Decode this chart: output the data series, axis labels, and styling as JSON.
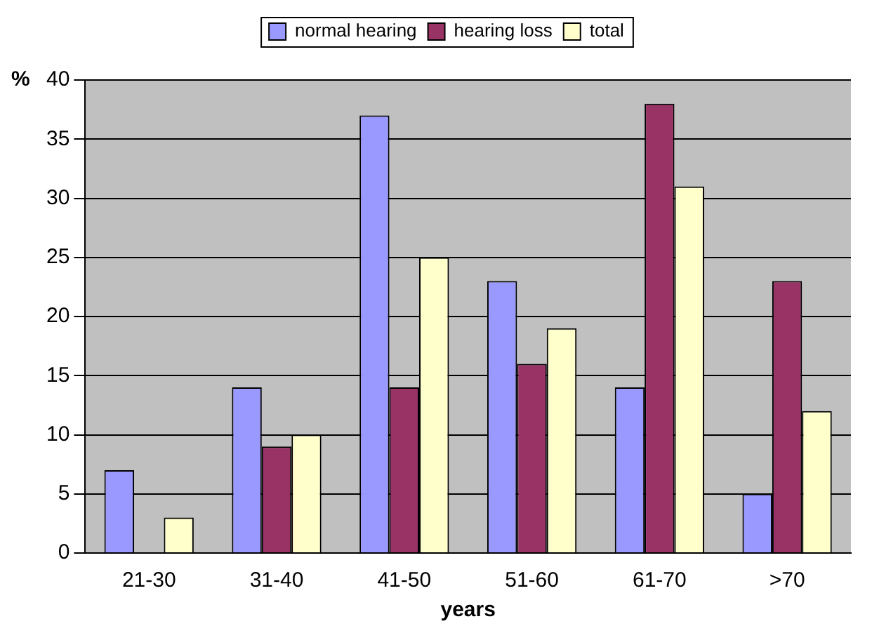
{
  "chart_data": {
    "type": "bar",
    "xlabel": "years",
    "ylabel": "%",
    "categories": [
      "21-30",
      "31-40",
      "41-50",
      "51-60",
      "61-70",
      ">70"
    ],
    "series": [
      {
        "name": "normal hearing",
        "color": "#9999ff",
        "values": [
          7,
          14,
          37,
          23,
          14,
          5
        ]
      },
      {
        "name": "hearing loss",
        "color": "#993366",
        "values": [
          0,
          9,
          14,
          16,
          38,
          23
        ]
      },
      {
        "name": "total",
        "color": "#ffffcc",
        "values": [
          3,
          10,
          25,
          19,
          31,
          12
        ]
      }
    ],
    "ylim": [
      0,
      40
    ],
    "yticks": [
      0,
      5,
      10,
      15,
      20,
      25,
      30,
      35,
      40
    ],
    "grid": "y",
    "legend": "top"
  }
}
